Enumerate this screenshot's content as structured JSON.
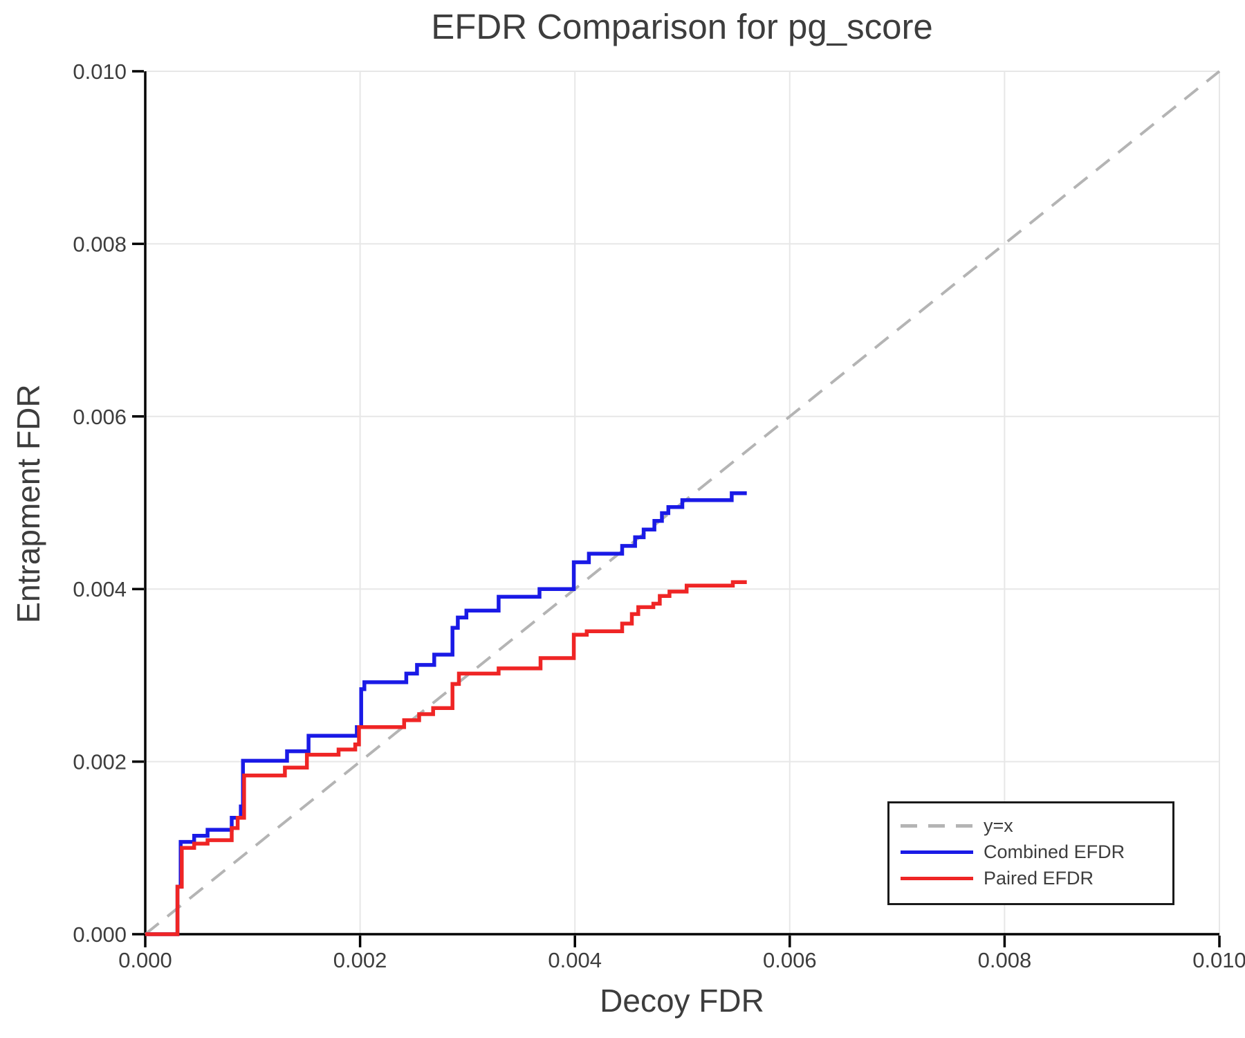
{
  "chart_data": {
    "type": "line",
    "title": "EFDR Comparison for pg_score",
    "xlabel": "Decoy FDR",
    "ylabel": "Entrapment FDR",
    "xlim": [
      0,
      0.01
    ],
    "ylim": [
      0,
      0.01
    ],
    "grid": true,
    "x_ticks": [
      "0.000",
      "0.002",
      "0.004",
      "0.006",
      "0.008",
      "0.010"
    ],
    "y_ticks": [
      "0.000",
      "0.002",
      "0.004",
      "0.006",
      "0.008",
      "0.010"
    ],
    "colors": {
      "identity_line": "#b4b4b4",
      "combined": "#1a1ae6",
      "paired": "#ef2525",
      "grid": "#e7e7e7",
      "spine": "#000000",
      "text": "#3d3d3d"
    },
    "legend": {
      "position": "lower right"
    },
    "series": [
      {
        "name": "y=x",
        "style": "dashed",
        "color": "#b4b4b4",
        "points": [
          [
            0,
            0
          ],
          [
            0.01,
            0.01
          ]
        ]
      },
      {
        "name": "Combined EFDR",
        "style": "step",
        "color": "#1a1ae6",
        "start": [
          0,
          0
        ],
        "end_x": 0.0056,
        "points": [
          [
            0.0003,
            0.00055
          ],
          [
            0.00033,
            0.00107
          ],
          [
            0.000455,
            0.00114
          ],
          [
            0.00058,
            0.00121
          ],
          [
            0.000805,
            0.00135
          ],
          [
            0.00089,
            0.00148
          ],
          [
            0.00091,
            0.00201
          ],
          [
            0.00132,
            0.00212
          ],
          [
            0.00152,
            0.0023
          ],
          [
            0.00197,
            0.0024
          ],
          [
            0.00201,
            0.00284
          ],
          [
            0.00204,
            0.00292
          ],
          [
            0.00243,
            0.00302
          ],
          [
            0.00253,
            0.00312
          ],
          [
            0.00269,
            0.00324
          ],
          [
            0.00286,
            0.00355
          ],
          [
            0.00291,
            0.00367
          ],
          [
            0.00299,
            0.00375
          ],
          [
            0.00329,
            0.00391
          ],
          [
            0.00367,
            0.004
          ],
          [
            0.00399,
            0.00431
          ],
          [
            0.00413,
            0.00441
          ],
          [
            0.00444,
            0.0045
          ],
          [
            0.00456,
            0.0046
          ],
          [
            0.00464,
            0.00469
          ],
          [
            0.00474,
            0.00479
          ],
          [
            0.00481,
            0.00488
          ],
          [
            0.00487,
            0.00495
          ],
          [
            0.005,
            0.00503
          ],
          [
            0.00546,
            0.00511
          ]
        ]
      },
      {
        "name": "Paired EFDR",
        "style": "step",
        "color": "#ef2525",
        "start": [
          0,
          0
        ],
        "end_x": 0.0056,
        "points": [
          [
            0.0003,
            0.00055
          ],
          [
            0.00034,
            0.001
          ],
          [
            0.000455,
            0.00105
          ],
          [
            0.00058,
            0.00109
          ],
          [
            0.000805,
            0.00123
          ],
          [
            0.00086,
            0.00135
          ],
          [
            0.00092,
            0.00184
          ],
          [
            0.0013,
            0.00193
          ],
          [
            0.001505,
            0.00208
          ],
          [
            0.0018,
            0.00214
          ],
          [
            0.001955,
            0.0022
          ],
          [
            0.00199,
            0.0024
          ],
          [
            0.00241,
            0.00248
          ],
          [
            0.00255,
            0.00255
          ],
          [
            0.00268,
            0.00262
          ],
          [
            0.00286,
            0.0029
          ],
          [
            0.00292,
            0.00302
          ],
          [
            0.00329,
            0.00308
          ],
          [
            0.00368,
            0.0032
          ],
          [
            0.00399,
            0.00347
          ],
          [
            0.00411,
            0.00351
          ],
          [
            0.00444,
            0.0036
          ],
          [
            0.00453,
            0.00371
          ],
          [
            0.00459,
            0.00379
          ],
          [
            0.00473,
            0.00383
          ],
          [
            0.00479,
            0.00392
          ],
          [
            0.00488,
            0.00397
          ],
          [
            0.00504,
            0.00404
          ],
          [
            0.00547,
            0.00408
          ]
        ]
      }
    ]
  },
  "legend_labels": {
    "identity": "y=x",
    "combined": "Combined EFDR",
    "paired": "Paired EFDR"
  }
}
